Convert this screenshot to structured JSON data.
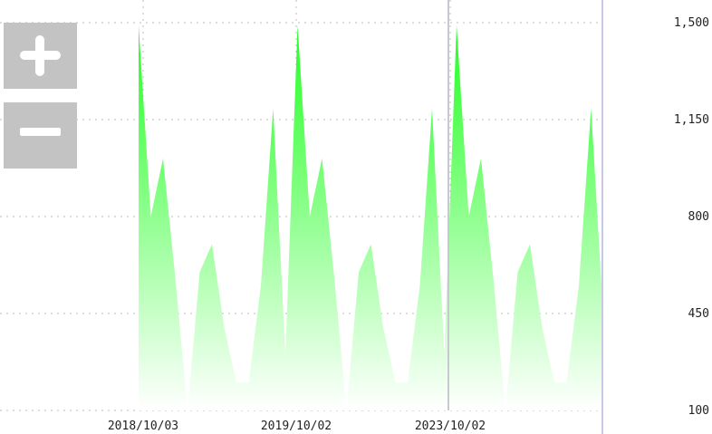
{
  "controls": {
    "zoom_in_icon": "plus-icon",
    "zoom_out_icon": "minus-icon",
    "button_color": "#c3c3c3"
  },
  "colors": {
    "area_top": "#22ff22",
    "area_bottom": "#ffffff",
    "grid": "#bbbbbb",
    "axis_line": "#c8c8e6",
    "cursor_line": "#c8c8d0"
  },
  "chart_data": {
    "type": "area",
    "title": "",
    "xlabel": "",
    "ylabel": "",
    "ylim": [
      100,
      1500
    ],
    "y_ticks": [
      100,
      450,
      800,
      1150,
      1500
    ],
    "y_tick_labels": [
      "100",
      "450",
      "800",
      "1,150",
      "1,500"
    ],
    "x_tick_labels": [
      "2018/10/03",
      "2019/10/02",
      "2023/10/02"
    ],
    "grid": true,
    "series": [
      {
        "values": [
          1490,
          800,
          1010,
          580,
          100,
          600,
          700,
          400,
          200,
          200,
          550,
          1190,
          300,
          1490,
          800,
          1010,
          580,
          100,
          600,
          700,
          400,
          200,
          200,
          550,
          1190,
          300,
          1490,
          800,
          1010,
          580,
          100,
          600,
          700,
          400,
          200,
          200,
          550,
          1190,
          440
        ]
      }
    ]
  }
}
